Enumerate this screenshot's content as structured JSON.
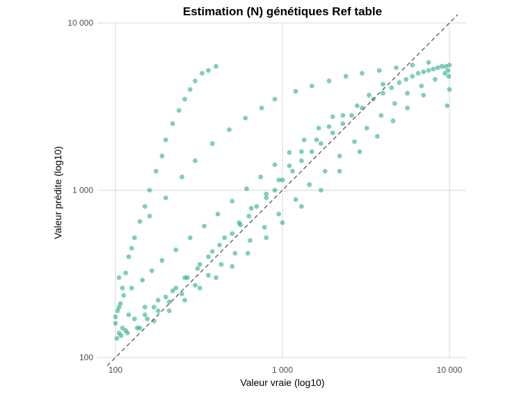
{
  "chart_data": {
    "type": "scatter",
    "title": "Estimation (N) génétiques Ref table",
    "xlabel": "Valeur vraie (log10)",
    "ylabel": "Valeur prédite (log10)",
    "x_scale": "log10",
    "y_scale": "log10",
    "xlim": [
      100,
      10000
    ],
    "ylim": [
      100,
      10000
    ],
    "x_ticks": [
      {
        "value": 100,
        "label": "100"
      },
      {
        "value": 1000,
        "label": "1 000"
      },
      {
        "value": 10000,
        "label": "10 000"
      }
    ],
    "y_ticks": [
      {
        "value": 100,
        "label": "100"
      },
      {
        "value": 1000,
        "label": "1 000"
      },
      {
        "value": 10000,
        "label": "10 000"
      }
    ],
    "grid": true,
    "reference_line": {
      "type": "identity",
      "style": "dashed",
      "color": "#555555"
    },
    "point_color": "#009E73",
    "point_opacity": 0.5,
    "series": [
      {
        "x": [
          100,
          105,
          110,
          115,
          120,
          130,
          140,
          150,
          160,
          175,
          190,
          200,
          220,
          240,
          260,
          280,
          300,
          330,
          360,
          400,
          110,
          130,
          150,
          170,
          200,
          230,
          270,
          310,
          360,
          420,
          500,
          560,
          630,
          700,
          800,
          900,
          1000,
          1150,
          1300,
          1500,
          1700,
          2000,
          2300,
          2600,
          3000,
          3500,
          4000,
          4500,
          5000,
          5500,
          6000,
          6500,
          7000,
          7500,
          8000,
          8500,
          9000,
          9500,
          10000,
          10000,
          120,
          150,
          180,
          220,
          260,
          320,
          380,
          450,
          550,
          650,
          800,
          950,
          1100,
          1300,
          1600,
          1900,
          2300,
          2800,
          3300,
          4000,
          105,
          125,
          160,
          200,
          250,
          300,
          380,
          480,
          600,
          750,
          900,
          1200,
          1500,
          1900,
          2400,
          3000,
          3800,
          4800,
          6000,
          7500,
          105,
          115,
          140,
          170,
          210,
          260,
          320,
          400,
          500,
          620,
          800,
          1000,
          1300,
          1700,
          2200,
          2900,
          3700,
          4600,
          5600,
          7000,
          102,
          108,
          118,
          135,
          155,
          180,
          210,
          250,
          300,
          360,
          430,
          520,
          640,
          780,
          950,
          1200,
          1450,
          1800,
          2200,
          2700,
          3200,
          3900,
          4700,
          5600,
          6800,
          8200,
          9400,
          9800,
          9900,
          9700,
          100,
          103,
          107,
          112,
          125,
          145,
          165,
          190,
          230,
          280,
          340,
          410,
          500,
          610,
          740,
          900,
          1100,
          1350,
          1650,
          2000
        ],
        "y": [
          160,
          200,
          260,
          320,
          400,
          520,
          650,
          800,
          1000,
          1300,
          1600,
          2000,
          2500,
          3000,
          3500,
          4000,
          4500,
          5000,
          5200,
          5500,
          150,
          170,
          180,
          200,
          230,
          260,
          300,
          340,
          400,
          470,
          550,
          620,
          700,
          800,
          900,
          1000,
          1150,
          1300,
          1500,
          1700,
          1900,
          2200,
          2500,
          2800,
          3100,
          3500,
          3800,
          4100,
          4400,
          4600,
          4800,
          5000,
          5100,
          5200,
          5300,
          5400,
          5500,
          5500,
          5600,
          4000,
          180,
          200,
          220,
          250,
          300,
          360,
          430,
          520,
          640,
          780,
          950,
          1150,
          1400,
          1700,
          2000,
          2400,
          2800,
          3200,
          3700,
          4300,
          300,
          450,
          700,
          900,
          1200,
          1500,
          1900,
          2300,
          2700,
          3100,
          3500,
          3900,
          4200,
          4500,
          4800,
          5000,
          5200,
          5400,
          5600,
          5800,
          140,
          145,
          150,
          165,
          190,
          220,
          260,
          300,
          350,
          420,
          520,
          640,
          800,
          1000,
          1300,
          1700,
          2100,
          2600,
          3100,
          3700,
          130,
          135,
          140,
          150,
          170,
          190,
          215,
          240,
          270,
          310,
          360,
          420,
          500,
          600,
          720,
          880,
          1080,
          1300,
          1600,
          1950,
          2350,
          2800,
          3300,
          3800,
          4200,
          4600,
          5000,
          5200,
          4800,
          3200,
          175,
          190,
          210,
          235,
          260,
          290,
          330,
          380,
          440,
          520,
          610,
          720,
          860,
          1020,
          1200,
          1420,
          1680,
          2000,
          2350,
          2750
        ]
      }
    ]
  }
}
